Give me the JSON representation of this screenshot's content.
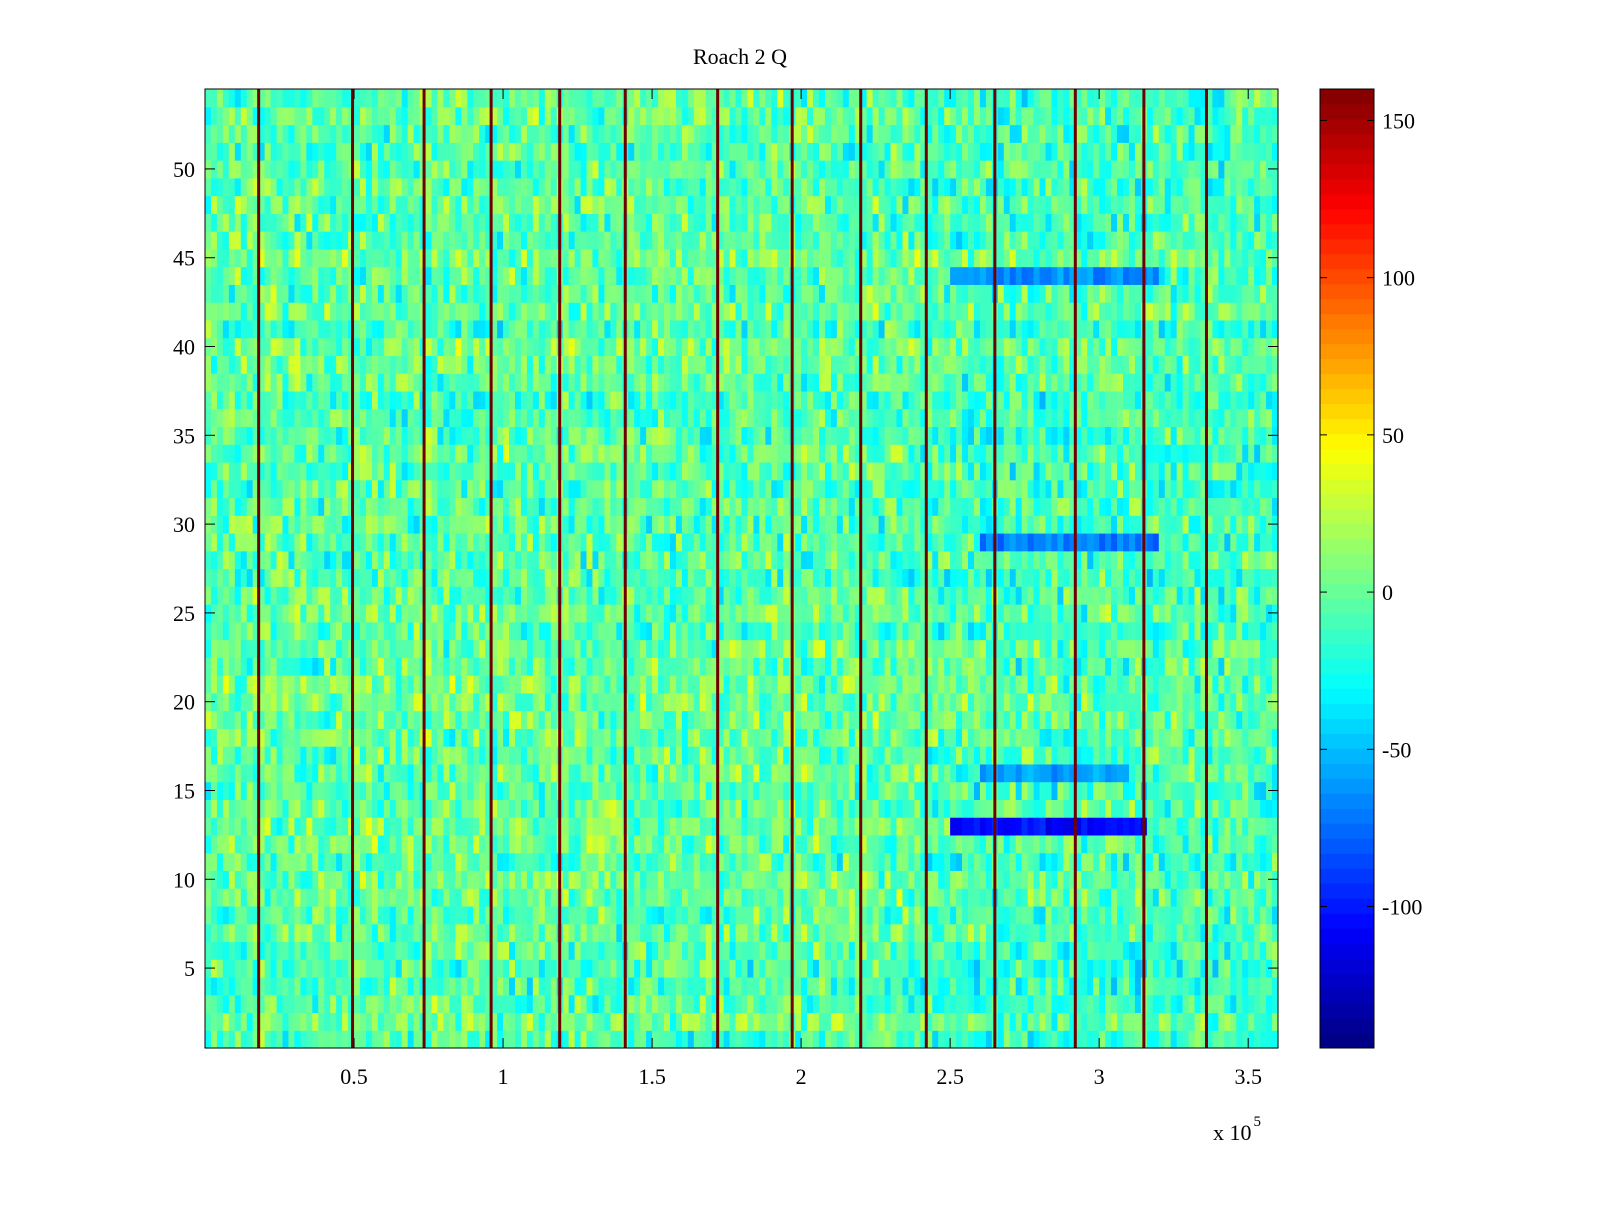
{
  "chart_data": {
    "type": "heatmap",
    "title": "Roach 2 Q",
    "xlabel": "",
    "ylabel": "",
    "x_exponent_label": "x 10",
    "x_exponent_power": "5",
    "xlim": [
      0,
      3.6
    ],
    "ylim": [
      0.5,
      54.5
    ],
    "x_ticks": [
      0.5,
      1,
      1.5,
      2,
      2.5,
      3,
      3.5
    ],
    "x_tick_labels": [
      "0.5",
      "1",
      "1.5",
      "2",
      "2.5",
      "3",
      "3.5"
    ],
    "y_ticks": [
      5,
      10,
      15,
      20,
      25,
      30,
      35,
      40,
      45,
      50
    ],
    "y_tick_labels": [
      "5",
      "10",
      "15",
      "20",
      "25",
      "30",
      "35",
      "40",
      "45",
      "50"
    ],
    "rows": 54,
    "colormap": "jet",
    "color_limits": [
      -145,
      160
    ],
    "colorbar_ticks": [
      -100,
      -50,
      0,
      50,
      100,
      150
    ],
    "colorbar_tick_labels": [
      "-100",
      "-50",
      "0",
      "50",
      "100",
      "150"
    ],
    "stripe_positions": [
      0.18,
      0.495,
      0.735,
      0.96,
      1.19,
      1.41,
      1.72,
      1.97,
      2.2,
      2.42,
      2.65,
      2.92,
      3.15,
      3.36
    ],
    "stripe_value": 160,
    "background_value_range": [
      -40,
      35
    ],
    "blue_bands": [
      {
        "row": 13,
        "x_start": 2.5,
        "x_end": 3.15,
        "value": -105
      },
      {
        "row": 29,
        "x_start": 2.6,
        "x_end": 3.2,
        "value": -70
      },
      {
        "row": 44,
        "x_start": 2.5,
        "x_end": 3.2,
        "value": -65
      },
      {
        "row": 16,
        "x_start": 2.6,
        "x_end": 3.1,
        "value": -60
      }
    ]
  }
}
